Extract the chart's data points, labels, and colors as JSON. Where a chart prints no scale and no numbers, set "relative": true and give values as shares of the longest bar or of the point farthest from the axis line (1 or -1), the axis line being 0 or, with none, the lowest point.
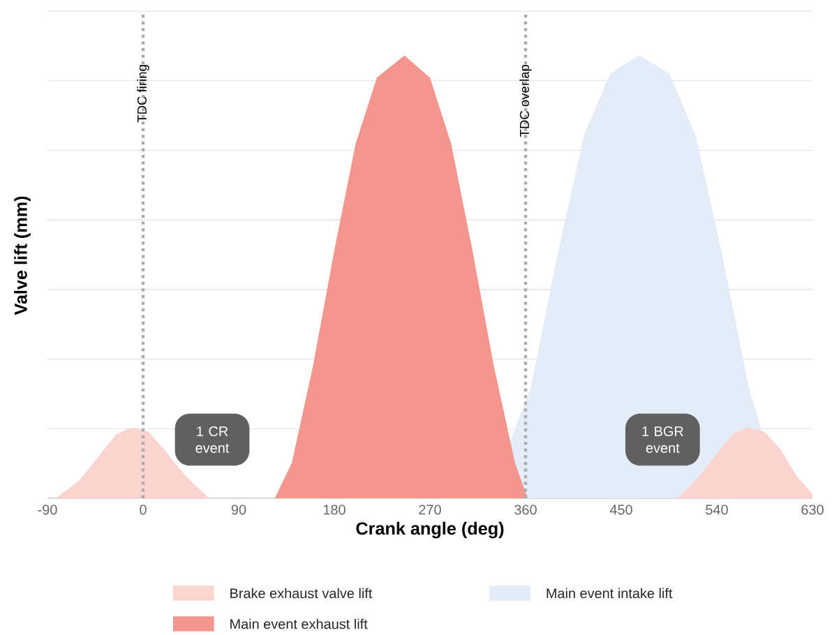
{
  "chart_data": {
    "type": "area",
    "relative": true,
    "xlabel": "Crank angle (deg)",
    "ylabel": "Valve lift (mm)",
    "xlim": [
      -90,
      630
    ],
    "xticks": [
      -90,
      0,
      90,
      180,
      270,
      360,
      450,
      540,
      630
    ],
    "grid": "y",
    "legend": "bottom",
    "series": [
      {
        "name": "Brake exhaust valve lift",
        "color": "#fbd3cf",
        "x": [
          -82,
          -60,
          -40,
          -25,
          -10,
          5,
          20,
          40,
          62,
          503,
          520,
          540,
          555,
          568,
          585,
          600,
          615,
          630
        ],
        "values": [
          0,
          0.04,
          0.1,
          0.145,
          0.16,
          0.15,
          0.11,
          0.05,
          0,
          0,
          0.04,
          0.1,
          0.145,
          0.16,
          0.15,
          0.11,
          0.05,
          0.01
        ]
      },
      {
        "name": "Main event exhaust lift",
        "color": "#f4958e",
        "x": [
          124,
          140,
          160,
          180,
          200,
          220,
          246,
          270,
          290,
          310,
          330,
          350,
          362
        ],
        "values": [
          0,
          0.08,
          0.3,
          0.56,
          0.8,
          0.95,
          1,
          0.95,
          0.8,
          0.56,
          0.3,
          0.08,
          0
        ]
      },
      {
        "name": "Main event intake lift",
        "color": "#e4ecf7",
        "x": [
          325,
          345,
          365,
          390,
          415,
          440,
          467,
          495,
          520,
          545,
          570,
          590,
          601
        ],
        "values": [
          0,
          null,
          0.25,
          0.55,
          0.82,
          0.96,
          1,
          0.96,
          0.82,
          0.55,
          0.25,
          null,
          0
        ]
      }
    ],
    "ref_lines": [
      {
        "axis": "x",
        "value": 0,
        "label": "TDC firing",
        "color": "#aaaaaa",
        "line_style": "dotted"
      },
      {
        "axis": "x",
        "value": 360,
        "label": "TDC overlap",
        "color": "#aaaaaa",
        "line_style": "dotted"
      }
    ],
    "annotations": [
      "1 CR event",
      "1 BGR event"
    ]
  }
}
